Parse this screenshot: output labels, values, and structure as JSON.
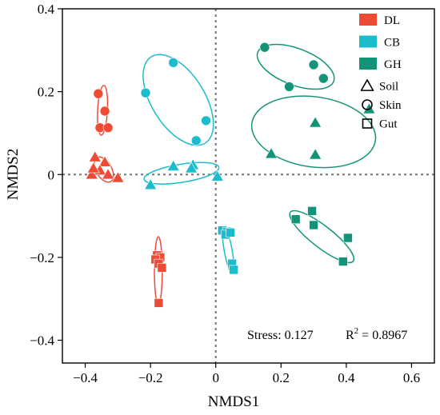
{
  "chart_data": {
    "type": "scatter",
    "xlabel": "NMDS1",
    "ylabel": "NMDS2",
    "xlim": [
      -0.47,
      0.67
    ],
    "ylim": [
      -0.455,
      0.4
    ],
    "xticks": [
      -0.4,
      -0.2,
      0,
      0.2,
      0.4,
      0.6
    ],
    "xtick_labels": [
      "−0.4",
      "−0.2",
      "0",
      "0.2",
      "0.4",
      "0.6"
    ],
    "yticks": [
      -0.4,
      -0.2,
      0,
      0.2,
      0.4
    ],
    "ytick_labels": [
      "−0.4",
      "−0.2",
      "0",
      "0.2",
      "0.4"
    ],
    "reference_lines": {
      "x": 0,
      "y": 0,
      "style": "dotted"
    },
    "legend_position": "top-right",
    "groups": [
      {
        "name": "DL",
        "color": "#ee4b36"
      },
      {
        "name": "CB",
        "color": "#1bbccb"
      },
      {
        "name": "GH",
        "color": "#139479"
      }
    ],
    "markers": [
      {
        "name": "Soil",
        "shape": "triangle"
      },
      {
        "name": "Skin",
        "shape": "circle"
      },
      {
        "name": "Gut",
        "shape": "square"
      }
    ],
    "series": [
      {
        "group": "DL",
        "marker": "Skin",
        "points": [
          [
            -0.36,
            0.195
          ],
          [
            -0.34,
            0.153
          ],
          [
            -0.355,
            0.113
          ],
          [
            -0.33,
            0.113
          ]
        ]
      },
      {
        "group": "DL",
        "marker": "Soil",
        "points": [
          [
            -0.37,
            0.042
          ],
          [
            -0.34,
            0.03
          ],
          [
            -0.355,
            0.01
          ],
          [
            -0.38,
            0.0
          ],
          [
            -0.33,
            0.0
          ],
          [
            -0.3,
            -0.008
          ],
          [
            -0.375,
            0.015
          ]
        ]
      },
      {
        "group": "DL",
        "marker": "Gut",
        "points": [
          [
            -0.18,
            -0.195
          ],
          [
            -0.17,
            -0.2
          ],
          [
            -0.185,
            -0.205
          ],
          [
            -0.175,
            -0.215
          ],
          [
            -0.165,
            -0.225
          ],
          [
            -0.175,
            -0.31
          ]
        ]
      },
      {
        "group": "CB",
        "marker": "Skin",
        "points": [
          [
            -0.13,
            0.27
          ],
          [
            -0.215,
            0.197
          ],
          [
            -0.03,
            0.13
          ],
          [
            -0.06,
            0.082
          ]
        ]
      },
      {
        "group": "CB",
        "marker": "Soil",
        "points": [
          [
            -0.13,
            0.02
          ],
          [
            -0.07,
            0.023
          ],
          [
            -0.075,
            0.015
          ],
          [
            -0.2,
            -0.025
          ],
          [
            0.005,
            -0.005
          ]
        ]
      },
      {
        "group": "CB",
        "marker": "Gut",
        "points": [
          [
            0.02,
            -0.135
          ],
          [
            0.035,
            -0.138
          ],
          [
            0.03,
            -0.145
          ],
          [
            0.045,
            -0.14
          ],
          [
            0.05,
            -0.215
          ],
          [
            0.055,
            -0.23
          ]
        ]
      },
      {
        "group": "GH",
        "marker": "Skin",
        "points": [
          [
            0.15,
            0.307
          ],
          [
            0.3,
            0.265
          ],
          [
            0.33,
            0.232
          ],
          [
            0.225,
            0.212
          ]
        ]
      },
      {
        "group": "GH",
        "marker": "Soil",
        "points": [
          [
            0.47,
            0.158
          ],
          [
            0.305,
            0.125
          ],
          [
            0.17,
            0.05
          ],
          [
            0.305,
            0.048
          ]
        ]
      },
      {
        "group": "GH",
        "marker": "Gut",
        "points": [
          [
            0.245,
            -0.108
          ],
          [
            0.295,
            -0.088
          ],
          [
            0.3,
            -0.122
          ],
          [
            0.405,
            -0.153
          ],
          [
            0.39,
            -0.21
          ]
        ]
      }
    ],
    "ellipses": [
      {
        "group": "DL",
        "marker": "Skin",
        "cx": -0.347,
        "cy": 0.155,
        "rx": 0.06,
        "ry": 0.015,
        "angle": 87
      },
      {
        "group": "DL",
        "marker": "Soil",
        "cx": -0.343,
        "cy": 0.012,
        "rx": 0.035,
        "ry": 0.022,
        "angle": -60
      },
      {
        "group": "DL",
        "marker": "Gut",
        "cx": -0.176,
        "cy": -0.232,
        "rx": 0.082,
        "ry": 0.012,
        "angle": 90
      },
      {
        "group": "CB",
        "marker": "Skin",
        "cx": -0.115,
        "cy": 0.18,
        "rx": 0.13,
        "ry": 0.075,
        "angle": -58
      },
      {
        "group": "CB",
        "marker": "Soil",
        "cx": -0.105,
        "cy": 0.003,
        "rx": 0.115,
        "ry": 0.022,
        "angle": 9
      },
      {
        "group": "CB",
        "marker": "Gut",
        "cx": 0.038,
        "cy": -0.183,
        "rx": 0.057,
        "ry": 0.012,
        "angle": -80
      },
      {
        "group": "GH",
        "marker": "Skin",
        "cx": 0.245,
        "cy": 0.26,
        "rx": 0.12,
        "ry": 0.045,
        "angle": -21
      },
      {
        "group": "GH",
        "marker": "Soil",
        "cx": 0.3,
        "cy": 0.103,
        "rx": 0.19,
        "ry": 0.085,
        "angle": -8
      },
      {
        "group": "GH",
        "marker": "Gut",
        "cx": 0.325,
        "cy": -0.15,
        "rx": 0.11,
        "ry": 0.028,
        "angle": -38
      }
    ],
    "annotations": {
      "stress": "Stress: 0.127",
      "r2_prefix": "R",
      "r2_sup": "2",
      "r2_value": " = 0.8967"
    }
  }
}
